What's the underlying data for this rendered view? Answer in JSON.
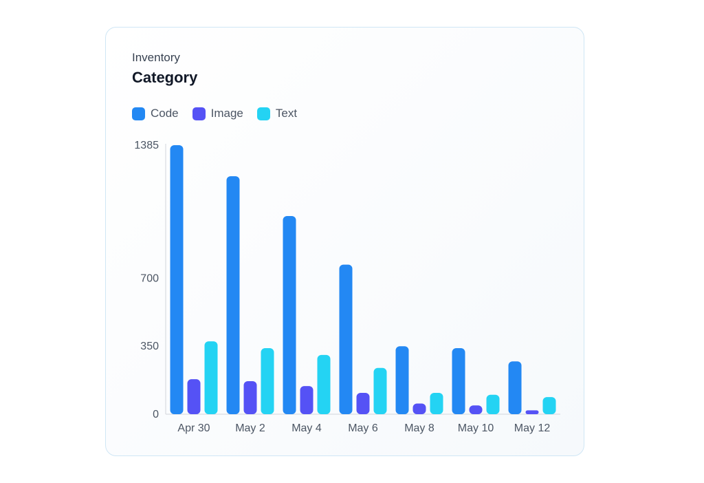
{
  "card": {
    "subtitle": "Inventory",
    "title": "Category"
  },
  "colors": {
    "Code": "#2388f3",
    "Image": "#5552f5",
    "Text": "#24d3f3",
    "axis": "#d1d5db"
  },
  "chart_data": {
    "type": "bar",
    "title": "Category",
    "subtitle": "Inventory",
    "categories": [
      "Apr 30",
      "May 2",
      "May 4",
      "May 6",
      "May 8",
      "May 10",
      "May 12"
    ],
    "series": [
      {
        "name": "Code",
        "values": [
          1385,
          1225,
          1020,
          770,
          350,
          340,
          272
        ]
      },
      {
        "name": "Image",
        "values": [
          180,
          170,
          145,
          110,
          55,
          45,
          20
        ]
      },
      {
        "name": "Text",
        "values": [
          375,
          340,
          305,
          238,
          110,
          100,
          88
        ]
      }
    ],
    "yticks": [
      0,
      350,
      700,
      1385
    ],
    "ylim": [
      0,
      1385
    ],
    "legend": "top-left",
    "grid": false
  }
}
